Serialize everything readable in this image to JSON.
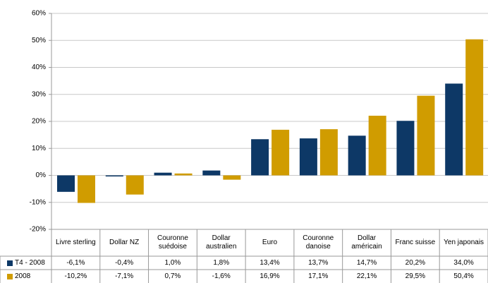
{
  "chart_data": {
    "type": "bar",
    "categories": [
      "Livre sterling",
      "Dollar NZ",
      "Couronne suédoise",
      "Dollar australien",
      "Euro",
      "Couronne danoise",
      "Dollar américain",
      "Franc suisse",
      "Yen japonais"
    ],
    "series": [
      {
        "name": "T4 - 2008",
        "color": "#0d3866",
        "values": [
          -6.1,
          -0.4,
          1.0,
          1.8,
          13.4,
          13.7,
          14.7,
          20.2,
          34.0
        ],
        "value_labels": [
          "-6,1%",
          "-0,4%",
          "1,0%",
          "1,8%",
          "13,4%",
          "13,7%",
          "14,7%",
          "20,2%",
          "34,0%"
        ]
      },
      {
        "name": "2008",
        "color": "#d09c00",
        "values": [
          -10.2,
          -7.1,
          0.7,
          -1.6,
          16.9,
          17.1,
          22.1,
          29.5,
          50.4
        ],
        "value_labels": [
          "-10,2%",
          "-7,1%",
          "0,7%",
          "-1,6%",
          "16,9%",
          "17,1%",
          "22,1%",
          "29,5%",
          "50,4%"
        ]
      }
    ],
    "ylim": [
      -20,
      60
    ],
    "yticks": [
      {
        "value": -20,
        "label": "-20%"
      },
      {
        "value": -10,
        "label": "-10%"
      },
      {
        "value": 0,
        "label": "0%"
      },
      {
        "value": 10,
        "label": "10%"
      },
      {
        "value": 20,
        "label": "20%"
      },
      {
        "value": 30,
        "label": "30%"
      },
      {
        "value": 40,
        "label": "40%"
      },
      {
        "value": 50,
        "label": "50%"
      },
      {
        "value": 60,
        "label": "60%"
      }
    ],
    "grid": true
  }
}
